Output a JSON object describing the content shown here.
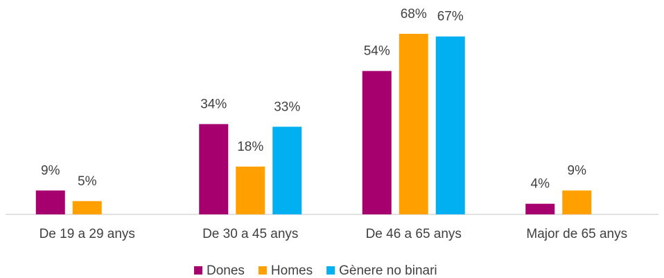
{
  "chart_data": {
    "type": "bar",
    "categories": [
      "De 19 a 29 anys",
      "De 30 a 45 anys",
      "De 46 a 65 anys",
      "Major de 65 anys"
    ],
    "series": [
      {
        "name": "Dones",
        "color": "#a5006e",
        "values": [
          9,
          34,
          54,
          4
        ],
        "value_labels": [
          "9%",
          "34%",
          "54%",
          "4%"
        ]
      },
      {
        "name": "Homes",
        "color": "#ffa000",
        "values": [
          5,
          18,
          68,
          9
        ],
        "value_labels": [
          "5%",
          "18%",
          "68%",
          "9%"
        ]
      },
      {
        "name": "Gènere no binari",
        "color": "#00b0f0",
        "values": [
          null,
          33,
          67,
          null
        ],
        "value_labels": [
          null,
          "33%",
          "67%",
          null
        ]
      }
    ],
    "legend": "bottom"
  }
}
